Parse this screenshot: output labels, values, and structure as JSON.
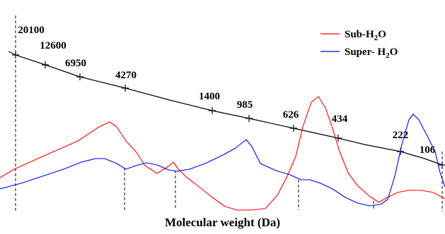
{
  "chart_data": {
    "type": "line",
    "xlabel": "Molecular weight (Da)",
    "calibration": {
      "labels": [
        "20100",
        "12600",
        "6950",
        "4270",
        "1400",
        "985",
        "626",
        "434",
        "222",
        "106"
      ],
      "color": "#000000"
    },
    "series": [
      {
        "name": "Sub-H2O",
        "color": "#ff0000",
        "points": [
          [
            0,
            252
          ],
          [
            20,
            240
          ],
          [
            60,
            222
          ],
          [
            110,
            200
          ],
          [
            140,
            180
          ],
          [
            155,
            173
          ],
          [
            165,
            180
          ],
          [
            178,
            200
          ],
          [
            192,
            215
          ],
          [
            205,
            235
          ],
          [
            222,
            246
          ],
          [
            238,
            236
          ],
          [
            245,
            230
          ],
          [
            252,
            240
          ],
          [
            262,
            250
          ],
          [
            280,
            264
          ],
          [
            300,
            280
          ],
          [
            318,
            293
          ],
          [
            335,
            298
          ],
          [
            355,
            298
          ],
          [
            375,
            296
          ],
          [
            392,
            277
          ],
          [
            405,
            252
          ],
          [
            418,
            222
          ],
          [
            428,
            180
          ],
          [
            440,
            145
          ],
          [
            450,
            137
          ],
          [
            460,
            153
          ],
          [
            470,
            182
          ],
          [
            480,
            215
          ],
          [
            492,
            245
          ],
          [
            505,
            263
          ],
          [
            522,
            278
          ],
          [
            535,
            287
          ],
          [
            548,
            280
          ],
          [
            562,
            273
          ],
          [
            578,
            270
          ],
          [
            595,
            270
          ],
          [
            612,
            273
          ],
          [
            629,
            282
          ]
        ]
      },
      {
        "name": "Super- H2O",
        "color": "#0000ff",
        "points": [
          [
            0,
            268
          ],
          [
            30,
            260
          ],
          [
            60,
            250
          ],
          [
            90,
            240
          ],
          [
            115,
            230
          ],
          [
            135,
            225
          ],
          [
            148,
            225
          ],
          [
            165,
            232
          ],
          [
            178,
            240
          ],
          [
            192,
            235
          ],
          [
            207,
            231
          ],
          [
            222,
            234
          ],
          [
            238,
            241
          ],
          [
            250,
            243
          ],
          [
            268,
            240
          ],
          [
            290,
            232
          ],
          [
            315,
            220
          ],
          [
            333,
            210
          ],
          [
            348,
            198
          ],
          [
            356,
            208
          ],
          [
            368,
            232
          ],
          [
            390,
            242
          ],
          [
            410,
            248
          ],
          [
            425,
            255
          ],
          [
            438,
            255
          ],
          [
            453,
            260
          ],
          [
            470,
            268
          ],
          [
            488,
            280
          ],
          [
            505,
            288
          ],
          [
            522,
            292
          ],
          [
            538,
            290
          ],
          [
            548,
            283
          ],
          [
            558,
            250
          ],
          [
            568,
            205
          ],
          [
            578,
            170
          ],
          [
            584,
            162
          ],
          [
            592,
            170
          ],
          [
            605,
            195
          ],
          [
            615,
            215
          ],
          [
            622,
            245
          ],
          [
            629,
            265
          ]
        ]
      }
    ],
    "legend": {
      "position": "top-right",
      "entries": [
        {
          "label": "Sub-H",
          "sub": "2",
          "tail": "O",
          "color": "#ff0000"
        },
        {
          "label": "Super- H",
          "sub": "2",
          "tail": "O",
          "color": "#0000ff"
        }
      ]
    },
    "grid": false
  }
}
